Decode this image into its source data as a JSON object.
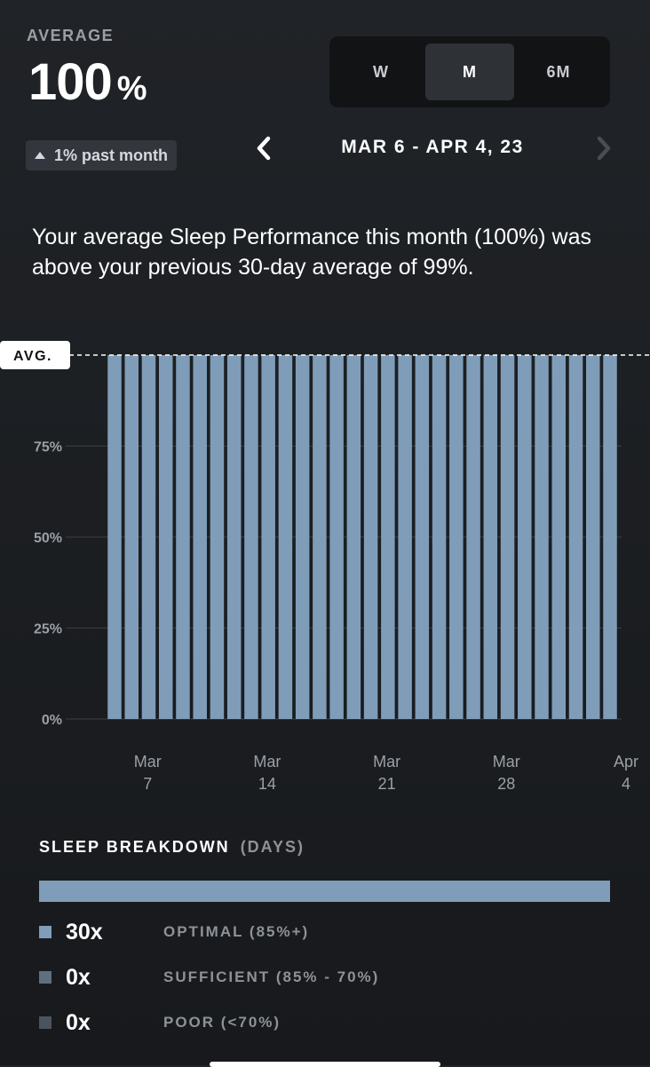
{
  "header": {
    "average_label": "AVERAGE",
    "average_value": "100",
    "average_unit": "%",
    "trend_text": "1% past month"
  },
  "range_toggle": {
    "options": [
      "W",
      "M",
      "6M"
    ],
    "selected": "M"
  },
  "date_nav": {
    "range_text": "MAR 6 - APR 4, 23"
  },
  "summary_text": "Your average Sleep Performance this month (100%) was above your previous 30-day average of 99%.",
  "chart_data": {
    "type": "bar",
    "title": "",
    "xlabel": "",
    "ylabel": "",
    "ylim": [
      0,
      100
    ],
    "y_ticks": [
      "0%",
      "25%",
      "50%",
      "75%"
    ],
    "avg_label": "AVG.",
    "avg_value": 100,
    "x_tick_labels": [
      {
        "month": "Mar",
        "day": "7",
        "index": 1
      },
      {
        "month": "Mar",
        "day": "14",
        "index": 8
      },
      {
        "month": "Mar",
        "day": "21",
        "index": 15
      },
      {
        "month": "Mar",
        "day": "28",
        "index": 22
      },
      {
        "month": "Apr",
        "day": "4",
        "index": 29
      }
    ],
    "values": [
      100,
      100,
      100,
      100,
      100,
      100,
      100,
      100,
      100,
      100,
      100,
      100,
      100,
      100,
      100,
      100,
      100,
      100,
      100,
      100,
      100,
      100,
      100,
      100,
      100,
      100,
      100,
      100,
      100,
      100
    ],
    "bar_color": "#7f9db8",
    "grid": true
  },
  "breakdown": {
    "title": "SLEEP BREAKDOWN",
    "subtitle": "(DAYS)",
    "total_days": 30,
    "rows": [
      {
        "count": "30x",
        "label": "OPTIMAL (85%+)",
        "color": "#7f9db8",
        "days": 30
      },
      {
        "count": "0x",
        "label": "SUFFICIENT (85% - 70%)",
        "color": "#5f6f7f",
        "days": 0
      },
      {
        "count": "0x",
        "label": "POOR (<70%)",
        "color": "#4b545e",
        "days": 0
      }
    ]
  },
  "colors": {
    "accent": "#7f9db8",
    "background": "#1c1f22",
    "muted_text": "#8d9298"
  }
}
